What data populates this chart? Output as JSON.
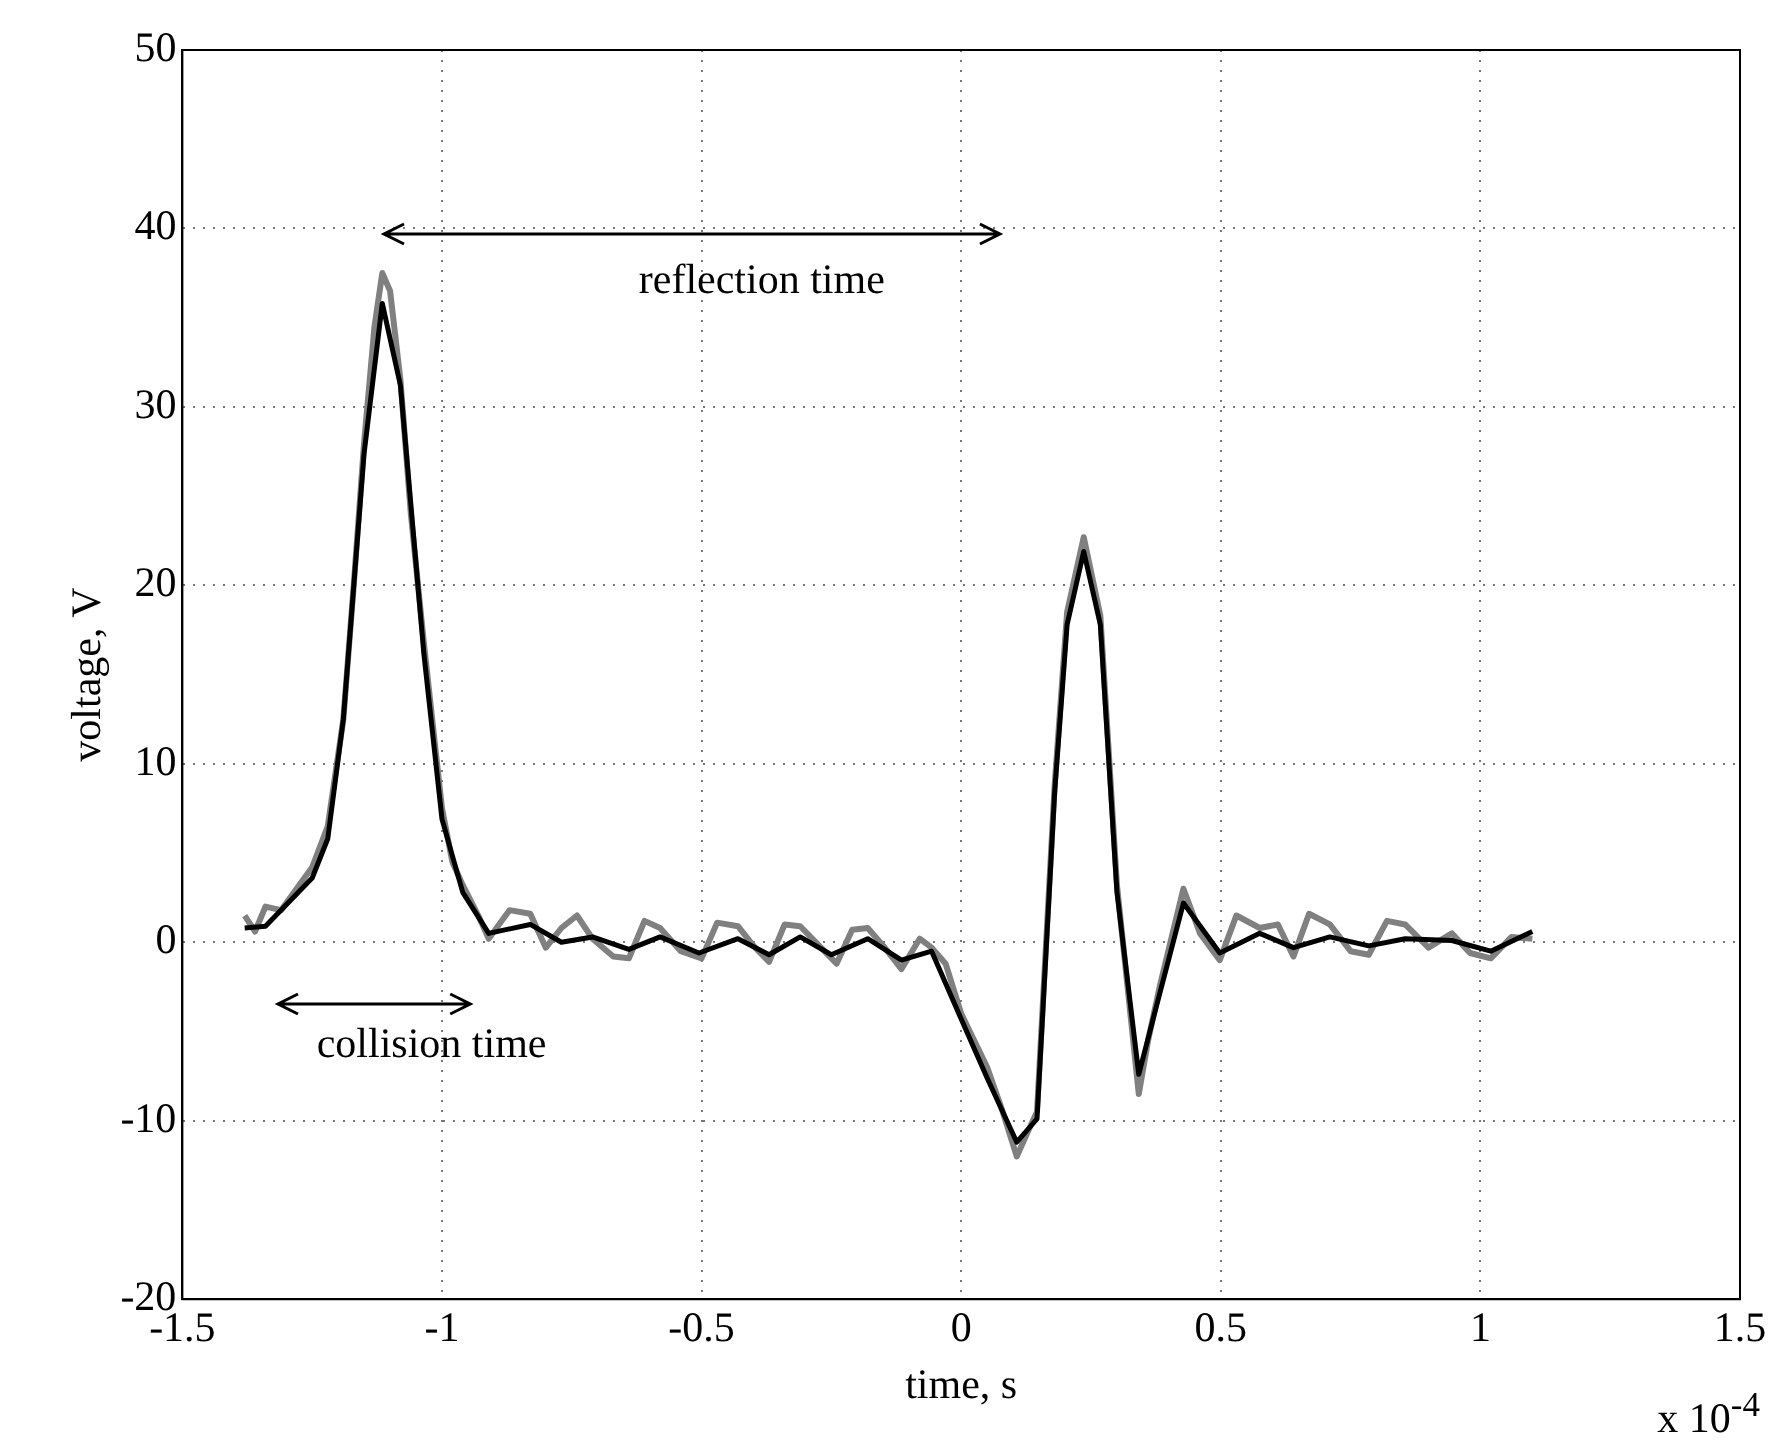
{
  "chart_data": {
    "type": "line",
    "xlabel": "time, s",
    "ylabel": "voltage, V",
    "xlim": [
      -1.5,
      1.5
    ],
    "xticks": [
      -1.5,
      -1,
      -0.5,
      0,
      0.5,
      1,
      1.5
    ],
    "ylim": [
      -20,
      50
    ],
    "yticks": [
      -20,
      -10,
      0,
      10,
      20,
      30,
      40,
      50
    ],
    "grid": true,
    "legend": false,
    "marker": "none",
    "line_style": "solid",
    "annotations": [
      "reflection time",
      "collision time",
      "x 10$^{-4}$"
    ],
    "series": [
      {
        "color": "#808080",
        "x": [
          -1.38,
          -1.36,
          -1.34,
          -1.31,
          -1.28,
          -1.25,
          -1.22,
          -1.19,
          -1.17,
          -1.15,
          -1.13,
          -1.115,
          -1.1,
          -1.08,
          -1.06,
          -1.035,
          -1.0,
          -0.98,
          -0.96,
          -0.93,
          -0.91,
          -0.87,
          -0.83,
          -0.8,
          -0.77,
          -0.74,
          -0.71,
          -0.67,
          -0.64,
          -0.61,
          -0.58,
          -0.54,
          -0.5,
          -0.47,
          -0.43,
          -0.4,
          -0.37,
          -0.34,
          -0.31,
          -0.27,
          -0.24,
          -0.21,
          -0.18,
          -0.15,
          -0.115,
          -0.08,
          -0.057,
          -0.03,
          0.0,
          0.05,
          0.08,
          0.107,
          0.13,
          0.146,
          0.18,
          0.204,
          0.236,
          0.268,
          0.3,
          0.342,
          0.36,
          0.383,
          0.428,
          0.46,
          0.498,
          0.53,
          0.575,
          0.61,
          0.64,
          0.67,
          0.71,
          0.75,
          0.785,
          0.82,
          0.855,
          0.9,
          0.945,
          0.98,
          1.02,
          1.06,
          1.1
        ],
        "values": [
          1.5,
          0.6,
          2.0,
          1.8,
          3.0,
          4.2,
          6.5,
          12.5,
          20.0,
          28.0,
          34.5,
          37.5,
          36.5,
          31.5,
          24.0,
          16.8,
          7.5,
          4.5,
          3.2,
          1.5,
          0.2,
          1.8,
          1.6,
          -0.3,
          0.8,
          1.5,
          0.2,
          -0.8,
          -0.9,
          1.2,
          0.8,
          -0.5,
          -0.9,
          1.1,
          0.9,
          -0.2,
          -1.1,
          1.0,
          0.9,
          -0.3,
          -1.2,
          0.7,
          0.8,
          -0.2,
          -1.5,
          0.2,
          -0.3,
          -1.2,
          -4.0,
          -7.0,
          -9.5,
          -12.0,
          -10.5,
          -9.5,
          8.8,
          18.5,
          22.7,
          18.3,
          3.2,
          -8.5,
          -5.5,
          -2.4,
          3.0,
          0.5,
          -1.0,
          1.5,
          0.8,
          1.0,
          -0.8,
          1.6,
          1.0,
          -0.5,
          -0.7,
          1.2,
          1.0,
          -0.3,
          0.5,
          -0.6,
          -0.9,
          0.3,
          0.2
        ]
      },
      {
        "color": "#000000",
        "x": [
          -1.38,
          -1.34,
          -1.25,
          -1.22,
          -1.19,
          -1.15,
          -1.115,
          -1.08,
          -1.035,
          -1.0,
          -0.96,
          -0.91,
          -0.83,
          -0.77,
          -0.71,
          -0.64,
          -0.58,
          -0.505,
          -0.43,
          -0.37,
          -0.31,
          -0.25,
          -0.18,
          -0.115,
          -0.057,
          0.0,
          0.05,
          0.107,
          0.146,
          0.18,
          0.204,
          0.236,
          0.268,
          0.3,
          0.342,
          0.383,
          0.428,
          0.498,
          0.575,
          0.64,
          0.71,
          0.785,
          0.855,
          0.945,
          1.02,
          1.1
        ],
        "values": [
          0.8,
          0.9,
          3.6,
          5.8,
          12.5,
          27.4,
          35.8,
          31.2,
          16.2,
          6.9,
          2.8,
          0.5,
          1.0,
          0.0,
          0.3,
          -0.4,
          0.3,
          -0.6,
          0.2,
          -0.7,
          0.3,
          -0.7,
          0.2,
          -1.0,
          -0.5,
          -4.3,
          -7.6,
          -11.2,
          -9.9,
          8.4,
          17.8,
          21.9,
          17.8,
          2.8,
          -7.4,
          -2.8,
          2.2,
          -0.6,
          0.5,
          -0.3,
          0.3,
          -0.2,
          0.2,
          0.1,
          -0.5,
          0.6
        ]
      }
    ]
  }
}
